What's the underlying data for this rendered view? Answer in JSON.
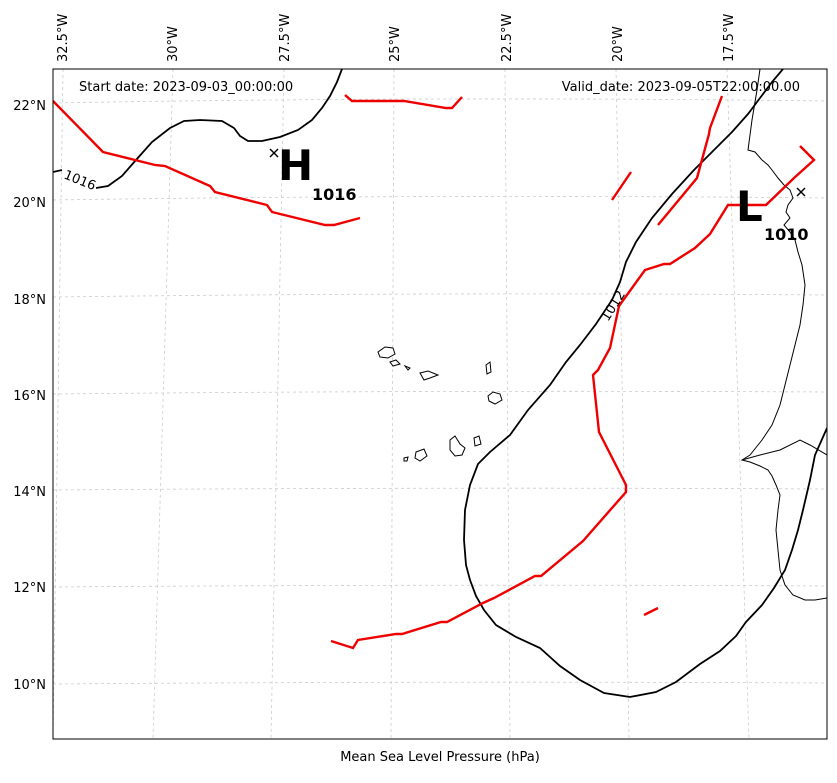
{
  "map": {
    "header_left": "Start date: 2023-09-03_00:00:00",
    "header_right": "Valid_date: 2023-09-05T22:00:00.00",
    "xlabel": "Mean Sea Level Pressure (hPa)",
    "lon_labels": [
      "32.5°W",
      "30°W",
      "27.5°W",
      "25°W",
      "22.5°W",
      "20°W",
      "17.5°W"
    ],
    "lat_labels": [
      "22°N",
      "20°N",
      "18°N",
      "16°N",
      "14°N",
      "12°N",
      "10°N"
    ],
    "centers": [
      {
        "type": "high",
        "letter": "H",
        "value": "1016"
      },
      {
        "type": "low",
        "letter": "L",
        "value": "1010"
      }
    ],
    "contour_labels": [
      "1016",
      "1012"
    ],
    "colors": {
      "front": "#ee0000",
      "isobar": "#000000",
      "grid": "#cccccc"
    },
    "icons": {
      "center_marker": "x-marker-icon"
    }
  }
}
